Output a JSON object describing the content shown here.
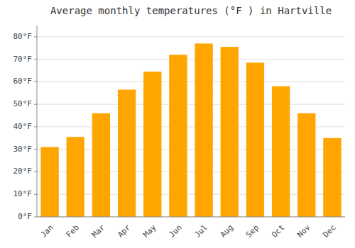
{
  "chart_data": {
    "type": "bar",
    "title": "Average monthly temperatures (°F ) in Hartville",
    "categories": [
      "Jan",
      "Feb",
      "Mar",
      "Apr",
      "May",
      "Jun",
      "Jul",
      "Aug",
      "Sep",
      "Oct",
      "Nov",
      "Dec"
    ],
    "values": [
      31,
      35.5,
      46,
      56.5,
      64.5,
      72,
      77,
      75.5,
      68.5,
      58,
      46,
      35
    ],
    "color": "#FFA500",
    "ylim": [
      0,
      85
    ],
    "yticks": [
      {
        "value": 0,
        "label": "0°F"
      },
      {
        "value": 10,
        "label": "10°F"
      },
      {
        "value": 20,
        "label": "20°F"
      },
      {
        "value": 30,
        "label": "30°F"
      },
      {
        "value": 40,
        "label": "40°F"
      },
      {
        "value": 50,
        "label": "50°F"
      },
      {
        "value": 60,
        "label": "60°F"
      },
      {
        "value": 70,
        "label": "70°F"
      },
      {
        "value": 80,
        "label": "80°F"
      }
    ],
    "grid": true
  }
}
